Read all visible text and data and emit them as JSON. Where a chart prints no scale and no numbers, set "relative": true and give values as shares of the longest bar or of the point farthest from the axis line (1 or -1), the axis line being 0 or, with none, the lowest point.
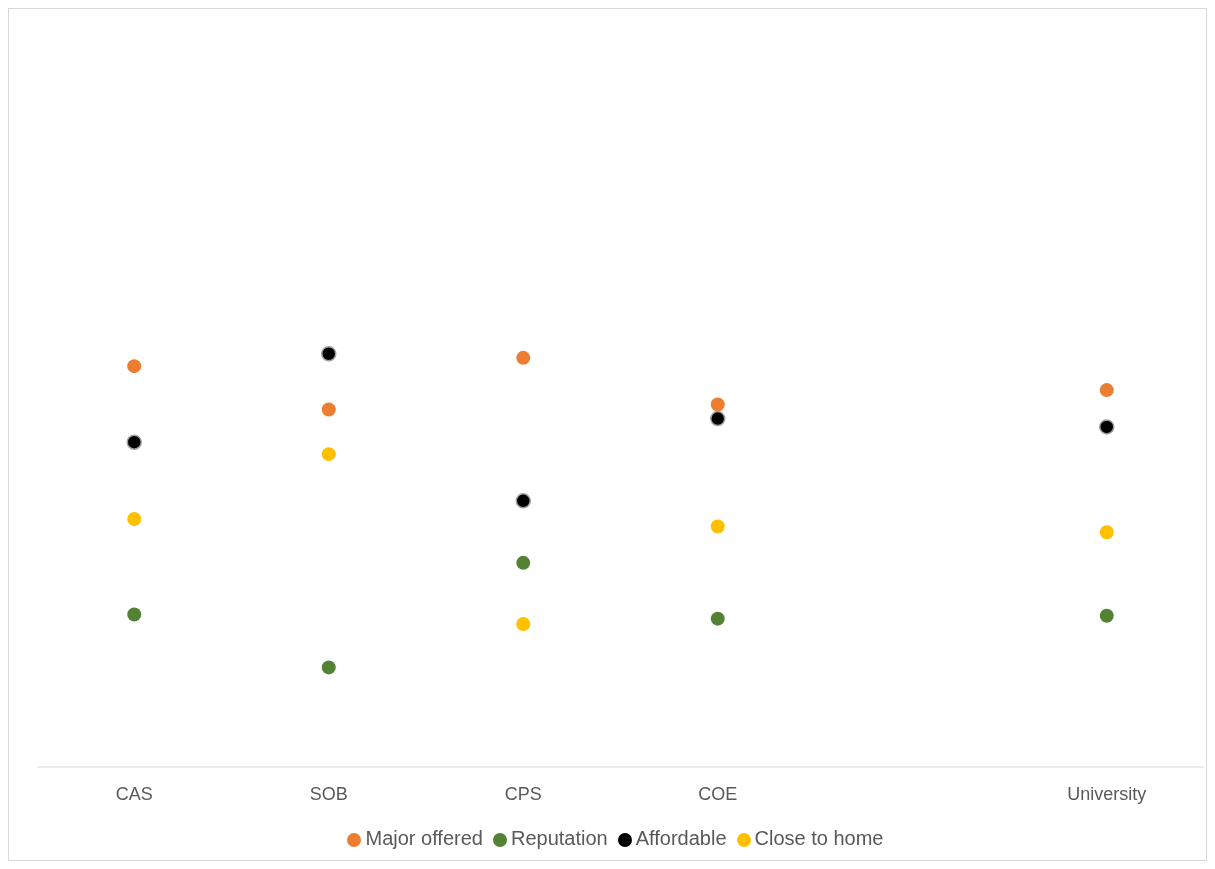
{
  "chart_data": {
    "type": "scatter",
    "relative": true,
    "categories": [
      "CAS",
      "SOB",
      "CPS",
      "COE",
      null,
      "University"
    ],
    "legend": "bottom",
    "marker": "circle",
    "grid": false,
    "series": [
      {
        "name": "Major offered",
        "color": "#ed7d31",
        "values": [
          0.97,
          0.865,
          0.99,
          0.877,
          null,
          0.912
        ]
      },
      {
        "name": "Reputation",
        "color": "#548235",
        "values": [
          0.369,
          0.241,
          0.494,
          0.359,
          null,
          0.366
        ]
      },
      {
        "name": "Affordable",
        "color": "#000000",
        "values": [
          0.786,
          1,
          0.644,
          0.843,
          null,
          0.823
        ]
      },
      {
        "name": "Close to home",
        "color": "#ffc000",
        "values": [
          0.6,
          0.757,
          0.346,
          0.582,
          null,
          0.568
        ]
      }
    ]
  }
}
